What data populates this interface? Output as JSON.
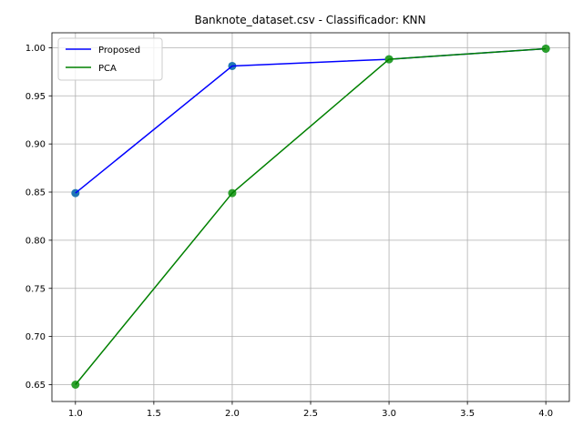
{
  "chart_data": {
    "type": "line",
    "title": "Banknote_dataset.csv - Classificador: KNN",
    "xlabel": "",
    "ylabel": "",
    "x": [
      1.0,
      2.0,
      3.0,
      4.0
    ],
    "xlim": [
      0.85,
      4.15
    ],
    "ylim": [
      0.6325,
      1.0155
    ],
    "xticks": [
      1.0,
      1.5,
      2.0,
      2.5,
      3.0,
      3.5,
      4.0
    ],
    "xtick_labels": [
      "1.0",
      "1.5",
      "2.0",
      "2.5",
      "3.0",
      "3.5",
      "4.0"
    ],
    "yticks": [
      0.65,
      0.7,
      0.75,
      0.8,
      0.85,
      0.9,
      0.95,
      1.0
    ],
    "ytick_labels": [
      "0.65",
      "0.70",
      "0.75",
      "0.80",
      "0.85",
      "0.90",
      "0.95",
      "1.00"
    ],
    "grid": true,
    "legend_position": "top-left",
    "series": [
      {
        "name": "Proposed",
        "values": [
          0.849,
          0.981,
          0.988,
          0.999
        ],
        "line_color": "#0000ff",
        "marker_color": "#1f77b4"
      },
      {
        "name": "PCA",
        "values": [
          0.65,
          0.849,
          0.988,
          0.999
        ],
        "line_color": "#008000",
        "marker_color": "#2ca02c"
      }
    ],
    "grid_color": "#b0b0b0"
  }
}
